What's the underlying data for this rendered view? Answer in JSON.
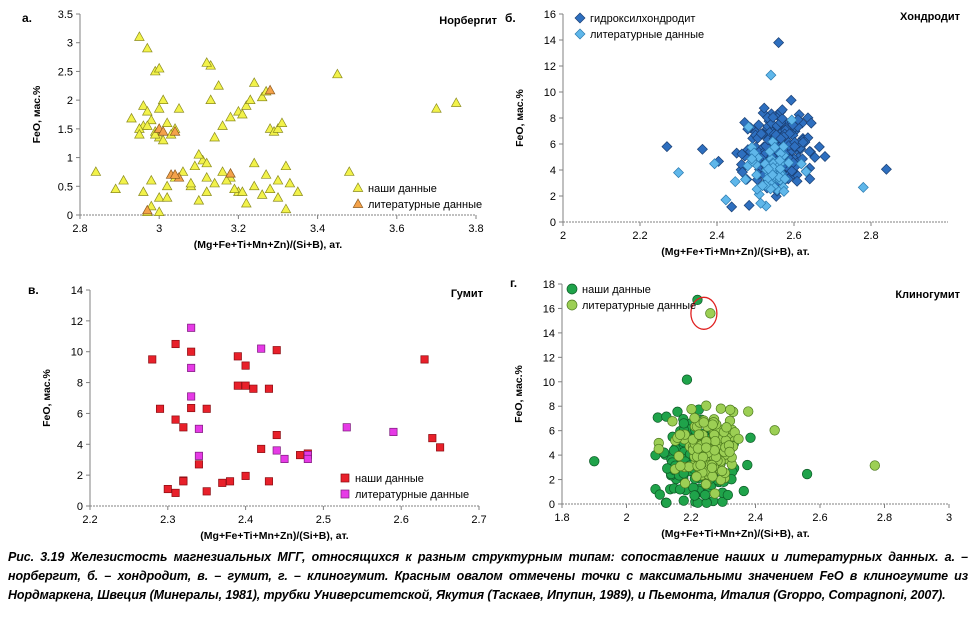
{
  "figure_caption": "Рис. 3.19 Железистость магнезиальных МГГ, относящихся к разным структурным типам: сопоставление наших и литературных данных. а. – норбергит, б. – хондродит, в. – гумит, г. – клиногумит. Красным овалом отмечены точки с максимальными значением FeO в клиногумите из Нордмаркена, Швеция (Минералы, 1981), трубки Университетской, Якутия (Таскаев, Ипупин, 1989), и Пьемонта, Италия (Groppo, Compagnoni, 2007).",
  "chart_data": [
    {
      "panel_label": "а.",
      "title": "Норбергит",
      "type": "scatter",
      "xlabel": "(Mg+Fe+Ti+Mn+Zn)/(Si+B), ат.",
      "ylabel": "FeO, мас.%",
      "xlim": [
        2.8,
        3.8
      ],
      "ylim": [
        0,
        3.5
      ],
      "xticks": [
        "2.8",
        "3",
        "3.2",
        "3.4",
        "3.6",
        "3.8"
      ],
      "yticks": [
        "0",
        "0.5",
        "1",
        "1.5",
        "2",
        "2.5",
        "3",
        "3.5"
      ],
      "legend_position": "bottom-right",
      "series": [
        {
          "name": "наши данные",
          "marker": "triangle",
          "color": "#f2f24a",
          "stroke": "#8c8c1e",
          "x": [
            2.95,
            2.97,
            2.99,
            3.0,
            3.01,
            3.0,
            2.98,
            2.96,
            2.95,
            2.93,
            2.96,
            2.97,
            2.99,
            3.0,
            3.02,
            3.04,
            3.05,
            3.03,
            3.01,
            2.99,
            2.97,
            2.95,
            2.98,
            3.0,
            3.02,
            2.84,
            2.89,
            2.91,
            2.96,
            2.98,
            3.0,
            3.02,
            3.04,
            3.06,
            3.08,
            3.1,
            3.12,
            3.12,
            3.11,
            3.1,
            3.09,
            3.08,
            3.12,
            3.14,
            3.16,
            3.18,
            3.2,
            3.21,
            3.22,
            3.23,
            3.24,
            3.26,
            3.27,
            3.28,
            3.29,
            3.3,
            3.31,
            3.32,
            3.3,
            3.28,
            3.26,
            3.24,
            3.22,
            3.2,
            3.18,
            3.16,
            3.14,
            3.13,
            3.12,
            3.13,
            3.15,
            3.17,
            3.19,
            3.21,
            3.24,
            3.27,
            3.3,
            3.33,
            3.35,
            3.45,
            3.48,
            3.7,
            3.75,
            2.97,
            3.32
          ],
          "y": [
            3.1,
            2.9,
            2.5,
            2.55,
            2.0,
            1.85,
            1.65,
            1.55,
            1.5,
            1.68,
            1.9,
            1.8,
            1.45,
            1.35,
            1.6,
            1.5,
            1.85,
            1.4,
            1.3,
            1.4,
            1.55,
            1.4,
            0.6,
            0.3,
            0.5,
            0.75,
            0.45,
            0.6,
            0.4,
            0.15,
            0.05,
            0.3,
            0.65,
            0.75,
            0.5,
            0.25,
            0.4,
            0.65,
            0.95,
            1.05,
            0.85,
            0.55,
            0.9,
            1.35,
            1.55,
            1.7,
            1.8,
            1.75,
            1.9,
            2.0,
            2.3,
            2.05,
            2.15,
            1.5,
            1.45,
            1.5,
            1.6,
            0.85,
            0.6,
            0.45,
            0.35,
            0.5,
            0.2,
            0.4,
            0.65,
            0.75,
            0.55,
            2.6,
            2.65,
            2.0,
            2.25,
            0.6,
            0.45,
            0.4,
            0.9,
            0.7,
            0.3,
            0.55,
            0.4,
            2.45,
            0.75,
            1.85,
            1.95,
            0.05,
            0.1
          ]
        },
        {
          "name": "литературные данные",
          "marker": "triangle",
          "color": "#f4a24a",
          "stroke": "#8c5a1e",
          "x": [
            3.0,
            3.01,
            3.04,
            3.03,
            3.05,
            3.04,
            2.97,
            3.18,
            3.28
          ],
          "y": [
            1.5,
            1.45,
            1.45,
            0.7,
            0.65,
            0.7,
            0.08,
            0.72,
            2.17
          ]
        }
      ]
    },
    {
      "panel_label": "б.",
      "title": "Хондродит",
      "type": "scatter",
      "xlabel": "(Mg+Fe+Ti+Mn+Zn)/(Si+B), ат.",
      "ylabel": "FeO, мас.%",
      "xlim": [
        2,
        3
      ],
      "ylim": [
        0,
        16
      ],
      "xticks": [
        "2",
        "2.2",
        "2.4",
        "2.6",
        "2.8"
      ],
      "yticks": [
        "0",
        "2",
        "4",
        "6",
        "8",
        "10",
        "12",
        "14",
        "16"
      ],
      "legend_position": "top-left",
      "series": [
        {
          "name": "гидроксилхондродит",
          "marker": "diamond",
          "color": "#2e6fbf",
          "stroke": "#1a3f73",
          "count": 190,
          "x_range": [
            2.27,
            2.84
          ],
          "y_range": [
            0.1,
            13.8
          ],
          "center": [
            2.56,
            5.8
          ]
        },
        {
          "name": "литературные данные",
          "marker": "diamond",
          "color": "#5fb7ea",
          "stroke": "#2a7ab0",
          "count": 60,
          "x_range": [
            2.3,
            2.78
          ],
          "y_range": [
            0.3,
            11.3
          ],
          "center": [
            2.54,
            3.8
          ]
        }
      ]
    },
    {
      "panel_label": "в.",
      "title": "Гумит",
      "type": "scatter",
      "xlabel": "(Mg+Fe+Ti+Mn+Zn)/(Si+B), ат.",
      "ylabel": "FeO, мас.%",
      "xlim": [
        2.2,
        2.7
      ],
      "ylim": [
        0,
        14
      ],
      "xticks": [
        "2.2",
        "2.3",
        "2.4",
        "2.5",
        "2.6",
        "2.7"
      ],
      "yticks": [
        "0",
        "2",
        "4",
        "6",
        "8",
        "10",
        "12",
        "14"
      ],
      "legend_position": "bottom-right",
      "series": [
        {
          "name": "наши данные",
          "marker": "square",
          "color": "#e8202a",
          "stroke": "#8a0c12",
          "x": [
            2.28,
            2.29,
            2.3,
            2.31,
            2.31,
            2.31,
            2.32,
            2.32,
            2.33,
            2.34,
            2.35,
            2.35,
            2.37,
            2.38,
            2.39,
            2.39,
            2.4,
            2.4,
            2.4,
            2.41,
            2.42,
            2.43,
            2.43,
            2.44,
            2.44,
            2.47,
            2.48,
            2.63,
            2.64,
            2.65,
            2.33,
            2.32
          ],
          "y": [
            9.5,
            6.3,
            1.1,
            5.6,
            10.5,
            0.85,
            1.65,
            5.1,
            6.35,
            2.7,
            0.95,
            6.3,
            1.5,
            1.6,
            7.8,
            9.7,
            9.1,
            7.8,
            1.95,
            7.6,
            3.7,
            1.6,
            7.6,
            10.1,
            4.6,
            3.3,
            3.4,
            9.5,
            4.4,
            3.8,
            10.0,
            1.6
          ]
        },
        {
          "name": "литературные данные",
          "marker": "square",
          "color": "#e63ae6",
          "stroke": "#7a1a7a",
          "x": [
            2.33,
            2.33,
            2.33,
            2.34,
            2.34,
            2.42,
            2.44,
            2.45,
            2.48,
            2.48,
            2.53,
            2.59
          ],
          "y": [
            11.55,
            8.95,
            7.1,
            5.0,
            3.25,
            10.2,
            3.6,
            3.05,
            3.3,
            3.05,
            5.1,
            4.8
          ]
        }
      ]
    },
    {
      "panel_label": "г.",
      "title": "Клиногумит",
      "type": "scatter",
      "xlabel": "(Mg+Fe+Ti+Mn+Zn)/(Si+B), ат.",
      "ylabel": "FeO, мас.%",
      "xlim": [
        1.8,
        3
      ],
      "ylim": [
        0,
        18
      ],
      "xticks": [
        "1.8",
        "2",
        "2.2",
        "2.4",
        "2.6",
        "2.8",
        "3"
      ],
      "yticks": [
        "0",
        "2",
        "4",
        "6",
        "8",
        "10",
        "12",
        "14",
        "16",
        "18"
      ],
      "legend_position": "top-left",
      "highlight_oval": {
        "x": 2.24,
        "y": 15.6,
        "color": "#e02020"
      },
      "series": [
        {
          "name": "наши данные",
          "marker": "circle",
          "color": "#1fa34a",
          "stroke": "#0d5a26",
          "count": 170,
          "x_range": [
            1.9,
            2.56
          ],
          "y_range": [
            0.1,
            16.7
          ],
          "center": [
            2.22,
            3.5
          ]
        },
        {
          "name": "литературные данные",
          "marker": "circle",
          "color": "#9ccf54",
          "stroke": "#4d7a1e",
          "count": 140,
          "x_range": [
            2.1,
            2.77
          ],
          "y_range": [
            0.1,
            15.6
          ],
          "center": [
            2.26,
            4.5
          ]
        }
      ]
    }
  ]
}
